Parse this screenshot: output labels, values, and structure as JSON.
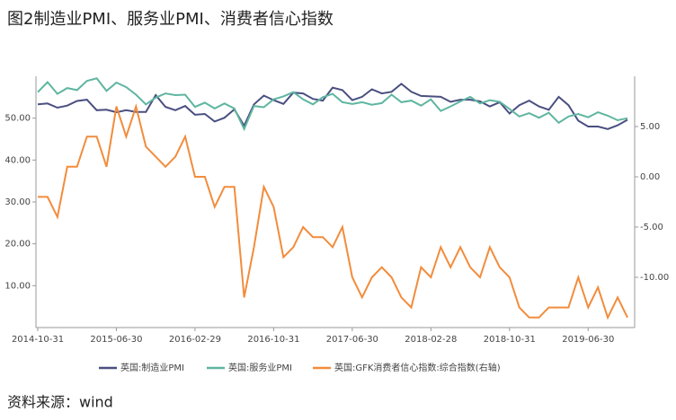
{
  "chart_data": {
    "type": "line",
    "title": "图2制造业PMI、服务业PMI、消费者信心指数",
    "source": "资料来源：wind",
    "categories": [
      "2014-10-31",
      null,
      null,
      null,
      null,
      null,
      null,
      null,
      "2015-06-30",
      null,
      null,
      null,
      null,
      null,
      null,
      null,
      "2016-02-29",
      null,
      null,
      null,
      null,
      null,
      null,
      null,
      "2016-10-31",
      null,
      null,
      null,
      null,
      null,
      null,
      null,
      "2017-06-30",
      null,
      null,
      null,
      null,
      null,
      null,
      null,
      "2018-02-28",
      null,
      null,
      null,
      null,
      null,
      null,
      null,
      "2018-10-31",
      null,
      null,
      null,
      null,
      null,
      null,
      null,
      "2019-06-30",
      null,
      null,
      null,
      null
    ],
    "ylim": [
      0,
      60
    ],
    "yticks": [
      {
        "value": 10,
        "label": "10.00"
      },
      {
        "value": 20,
        "label": "20.00"
      },
      {
        "value": 30,
        "label": "30.00"
      },
      {
        "value": 40,
        "label": "40.00"
      },
      {
        "value": 50,
        "label": "50.00"
      }
    ],
    "y2lim": [
      -15,
      10
    ],
    "y2ticks": [
      {
        "value": -10,
        "label": "-10.00"
      },
      {
        "value": -5,
        "label": "-5.00"
      },
      {
        "value": 0,
        "label": "0.00"
      },
      {
        "value": 5,
        "label": "5.00"
      }
    ],
    "legend": "bottom",
    "series": [
      {
        "name": "英国:制造业PMI",
        "color": "#4a4f80",
        "values": [
          53.3,
          53.5,
          52.5,
          53.0,
          54.1,
          54.4,
          51.9,
          52.0,
          51.4,
          51.9,
          51.5,
          51.5,
          55.5,
          52.7,
          51.9,
          52.9,
          50.8,
          51.0,
          49.2,
          50.1,
          52.1,
          48.2,
          53.3,
          55.4,
          54.3,
          53.4,
          56.1,
          55.9,
          54.6,
          54.2,
          57.3,
          56.7,
          54.3,
          55.1,
          56.9,
          55.9,
          56.3,
          58.2,
          56.3,
          55.3,
          55.2,
          55.1,
          53.9,
          54.4,
          54.4,
          54.0,
          52.8,
          53.8,
          51.1,
          53.1,
          54.2,
          52.8,
          52.0,
          55.1,
          53.1,
          49.4,
          48.0,
          48.0,
          47.4,
          48.3,
          49.6
        ]
      },
      {
        "name": "英国:服务业PMI",
        "color": "#5fb5a0",
        "values": [
          56.2,
          58.6,
          55.8,
          57.2,
          56.7,
          58.9,
          59.5,
          56.5,
          58.5,
          57.4,
          55.6,
          53.3,
          54.9,
          55.9,
          55.5,
          55.6,
          52.7,
          53.7,
          52.3,
          53.5,
          52.3,
          47.4,
          52.9,
          52.6,
          54.5,
          55.2,
          56.2,
          54.5,
          53.3,
          55.0,
          55.8,
          53.8,
          53.4,
          53.8,
          53.2,
          53.6,
          55.6,
          53.8,
          54.2,
          53.0,
          54.5,
          51.7,
          52.8,
          54.0,
          55.1,
          53.5,
          54.3,
          53.9,
          52.2,
          50.4,
          51.2,
          50.1,
          51.3,
          48.9,
          50.4,
          51.0,
          50.2,
          51.4,
          50.6,
          49.5,
          50.0
        ]
      },
      {
        "name": "英国:GFK消费者信心指数:综合指数(右轴)",
        "color": "#f28c3c",
        "axis": "y2",
        "values": [
          -2,
          -2,
          -4,
          1,
          1,
          4,
          4,
          1,
          7,
          4,
          7,
          3,
          2,
          1,
          2,
          4,
          0,
          0,
          -3,
          -1,
          -1,
          -12,
          -7,
          -1,
          -3,
          -8,
          -7,
          -5,
          -6,
          -6,
          -7,
          -5,
          -10,
          -12,
          -10,
          -9,
          -10,
          -12,
          -13,
          -9,
          -10,
          -7,
          -9,
          -7,
          -9,
          -10,
          -7,
          -9,
          -10,
          -13,
          -14,
          -14,
          -13,
          -13,
          -13,
          -10,
          -13,
          -11,
          -14,
          -12,
          -14
        ]
      }
    ]
  }
}
